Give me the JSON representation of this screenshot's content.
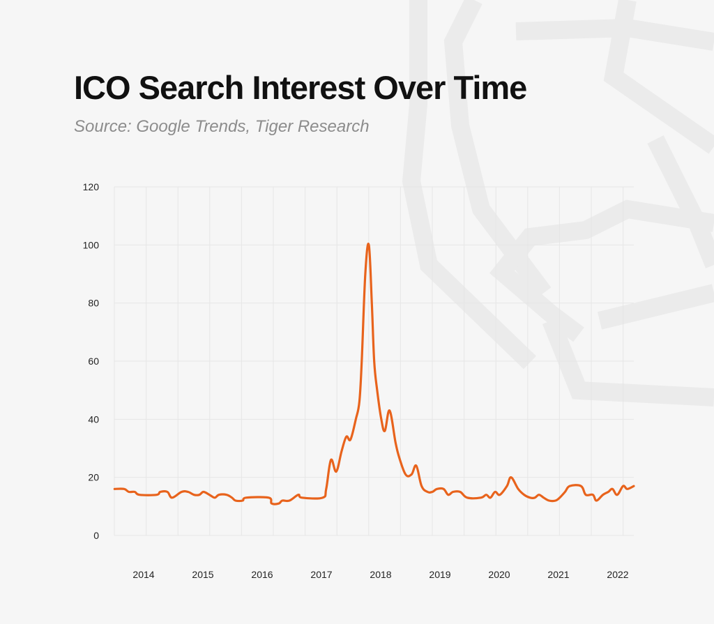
{
  "header": {
    "title": "ICO Search Interest Over Time",
    "subtitle": "Source: Google Trends, Tiger Research"
  },
  "colors": {
    "line": "#e8631c",
    "grid": "#e6e6e6",
    "watermark": "#e9e9e9",
    "background": "#f6f6f6"
  },
  "chart_data": {
    "type": "line",
    "title": "ICO Search Interest Over Time",
    "xlabel": "",
    "ylabel": "",
    "ylim": [
      0,
      120
    ],
    "xlim": [
      2013.5,
      2022.27
    ],
    "grid": true,
    "yticks": [
      "0",
      "20",
      "40",
      "60",
      "80",
      "100",
      "120"
    ],
    "xticks": [
      "2014",
      "2015",
      "2016",
      "2017",
      "2018",
      "2019",
      "2020",
      "2021",
      "2022"
    ],
    "series": [
      {
        "points": [
          [
            2013.51,
            16
          ],
          [
            2013.67,
            16
          ],
          [
            2013.75,
            15
          ],
          [
            2013.85,
            15
          ],
          [
            2013.93,
            14
          ],
          [
            2014.22,
            14
          ],
          [
            2014.28,
            15
          ],
          [
            2014.4,
            15
          ],
          [
            2014.48,
            13
          ],
          [
            2014.64,
            15
          ],
          [
            2014.75,
            15
          ],
          [
            2014.85,
            14
          ],
          [
            2014.94,
            14
          ],
          [
            2015.01,
            15
          ],
          [
            2015.11,
            14
          ],
          [
            2015.2,
            13
          ],
          [
            2015.27,
            14
          ],
          [
            2015.4,
            14
          ],
          [
            2015.49,
            13
          ],
          [
            2015.55,
            12
          ],
          [
            2015.67,
            12
          ],
          [
            2015.73,
            13
          ],
          [
            2016.11,
            13
          ],
          [
            2016.16,
            11
          ],
          [
            2016.28,
            11
          ],
          [
            2016.34,
            12
          ],
          [
            2016.46,
            12
          ],
          [
            2016.61,
            14
          ],
          [
            2016.67,
            13
          ],
          [
            2017.02,
            13
          ],
          [
            2017.08,
            16
          ],
          [
            2017.16,
            26
          ],
          [
            2017.25,
            22
          ],
          [
            2017.34,
            29
          ],
          [
            2017.42,
            34
          ],
          [
            2017.49,
            33
          ],
          [
            2017.58,
            40
          ],
          [
            2017.64,
            46
          ],
          [
            2017.68,
            60
          ],
          [
            2017.74,
            90
          ],
          [
            2017.8,
            100
          ],
          [
            2017.85,
            80
          ],
          [
            2017.89,
            60
          ],
          [
            2017.94,
            50
          ],
          [
            2018.01,
            40
          ],
          [
            2018.07,
            36
          ],
          [
            2018.15,
            43
          ],
          [
            2018.25,
            32
          ],
          [
            2018.31,
            27
          ],
          [
            2018.42,
            21
          ],
          [
            2018.52,
            21
          ],
          [
            2018.6,
            24
          ],
          [
            2018.69,
            17
          ],
          [
            2018.79,
            15
          ],
          [
            2018.87,
            15
          ],
          [
            2018.95,
            16
          ],
          [
            2019.06,
            16
          ],
          [
            2019.14,
            14
          ],
          [
            2019.22,
            15
          ],
          [
            2019.34,
            15
          ],
          [
            2019.46,
            13
          ],
          [
            2019.69,
            13
          ],
          [
            2019.78,
            14
          ],
          [
            2019.85,
            13
          ],
          [
            2019.93,
            15
          ],
          [
            2020.01,
            14
          ],
          [
            2020.13,
            17
          ],
          [
            2020.2,
            20
          ],
          [
            2020.32,
            16
          ],
          [
            2020.42,
            14
          ],
          [
            2020.52,
            13
          ],
          [
            2020.6,
            13
          ],
          [
            2020.67,
            14
          ],
          [
            2020.75,
            13
          ],
          [
            2020.84,
            12
          ],
          [
            2020.95,
            12
          ],
          [
            2021.02,
            13
          ],
          [
            2021.11,
            15
          ],
          [
            2021.19,
            17
          ],
          [
            2021.38,
            17
          ],
          [
            2021.46,
            14
          ],
          [
            2021.58,
            14
          ],
          [
            2021.64,
            12
          ],
          [
            2021.75,
            14
          ],
          [
            2021.84,
            15
          ],
          [
            2021.91,
            16
          ],
          [
            2021.99,
            14
          ],
          [
            2022.09,
            17
          ],
          [
            2022.16,
            16
          ],
          [
            2022.27,
            17
          ]
        ]
      }
    ]
  }
}
